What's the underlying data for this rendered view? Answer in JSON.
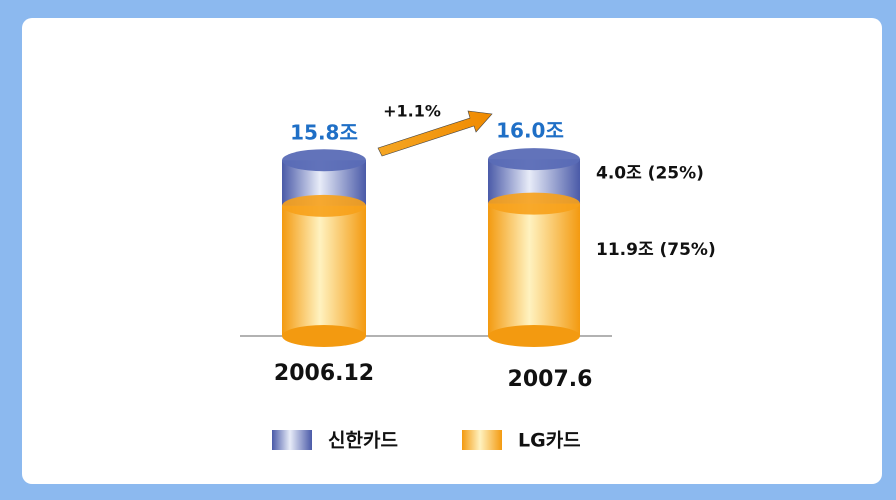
{
  "chart_data": {
    "type": "bar",
    "stacked": true,
    "categories": [
      "2006.12",
      "2007.6"
    ],
    "series": [
      {
        "name": "신한카드",
        "color": "#5a6cb6",
        "values": [
          4.1,
          4.0
        ],
        "value_labels": [
          null,
          "4.0조 (25%)"
        ]
      },
      {
        "name": "LG카드",
        "color": "#f7a11a",
        "values": [
          11.7,
          11.9
        ],
        "value_labels": [
          null,
          "11.9조 (75%)"
        ]
      }
    ],
    "totals": [
      15.8,
      16.0
    ],
    "total_labels": [
      "15.8조",
      "16.0조"
    ],
    "annotation": "+1.1%"
  }
}
